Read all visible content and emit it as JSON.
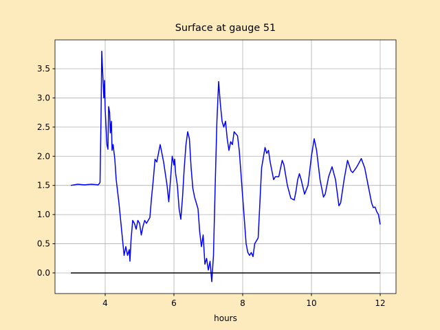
{
  "chart_data": {
    "type": "line",
    "title": "Surface at gauge 51",
    "x_label": "hours",
    "xlim": [
      2.54,
      12.46
    ],
    "ylim": [
      -0.354,
      3.995
    ],
    "xticks": [
      4,
      6,
      8,
      10,
      12
    ],
    "yticks": [
      {
        "value": 0,
        "label": "0.0"
      },
      0.5,
      {
        "value": 1,
        "label": "1.0"
      },
      1.5,
      {
        "value": 2,
        "label": "2.0"
      },
      2.5,
      {
        "value": 3,
        "label": "3.0"
      },
      3.5
    ],
    "grid": true,
    "series": [
      {
        "color": "#0000ff",
        "x": [
          3.0,
          3.2,
          3.4,
          3.6,
          3.8,
          3.85,
          3.88,
          3.9,
          3.93,
          3.96,
          3.98,
          4.0,
          4.05,
          4.08,
          4.1,
          4.13,
          4.15,
          4.18,
          4.2,
          4.23,
          4.28,
          4.32,
          4.4,
          4.5,
          4.55,
          4.6,
          4.65,
          4.7,
          4.72,
          4.75,
          4.8,
          4.85,
          4.9,
          4.95,
          5.0,
          5.05,
          5.1,
          5.15,
          5.2,
          5.3,
          5.35,
          5.4,
          5.45,
          5.5,
          5.6,
          5.7,
          5.8,
          5.85,
          5.9,
          5.95,
          6.0,
          6.02,
          6.05,
          6.1,
          6.15,
          6.2,
          6.25,
          6.3,
          6.35,
          6.4,
          6.45,
          6.5,
          6.55,
          6.6,
          6.7,
          6.75,
          6.8,
          6.85,
          6.9,
          6.95,
          7.0,
          7.05,
          7.1,
          7.15,
          7.2,
          7.25,
          7.3,
          7.35,
          7.4,
          7.45,
          7.5,
          7.55,
          7.6,
          7.65,
          7.7,
          7.75,
          7.85,
          7.9,
          7.95,
          8.0,
          8.05,
          8.1,
          8.15,
          8.2,
          8.25,
          8.3,
          8.35,
          8.45,
          8.5,
          8.55,
          8.65,
          8.7,
          8.75,
          8.8,
          8.85,
          8.9,
          8.95,
          9.05,
          9.15,
          9.2,
          9.3,
          9.4,
          9.5,
          9.55,
          9.6,
          9.65,
          9.7,
          9.8,
          9.9,
          10.0,
          10.08,
          10.15,
          10.25,
          10.35,
          10.4,
          10.5,
          10.6,
          10.7,
          10.8,
          10.85,
          10.95,
          11.05,
          11.15,
          11.2,
          11.3,
          11.35,
          11.45,
          11.55,
          11.65,
          11.75,
          11.8,
          11.85,
          11.9,
          11.95,
          12.0
        ],
        "values": [
          1.5,
          1.52,
          1.51,
          1.52,
          1.51,
          1.55,
          2.7,
          3.8,
          3.4,
          3.0,
          3.3,
          2.8,
          2.2,
          2.12,
          2.85,
          2.75,
          2.4,
          2.6,
          2.1,
          2.2,
          1.95,
          1.6,
          1.2,
          0.6,
          0.3,
          0.45,
          0.3,
          0.4,
          0.2,
          0.55,
          0.9,
          0.85,
          0.75,
          0.9,
          0.85,
          0.65,
          0.8,
          0.9,
          0.85,
          0.95,
          1.3,
          1.6,
          1.95,
          1.9,
          2.2,
          1.9,
          1.5,
          1.22,
          1.6,
          2.0,
          1.85,
          1.95,
          1.7,
          1.5,
          1.1,
          0.92,
          1.3,
          1.8,
          2.2,
          2.42,
          2.3,
          1.8,
          1.45,
          1.3,
          1.1,
          0.7,
          0.45,
          0.65,
          0.15,
          0.25,
          0.05,
          0.2,
          -0.15,
          0.3,
          1.5,
          2.6,
          3.28,
          2.9,
          2.6,
          2.5,
          2.6,
          2.3,
          2.1,
          2.25,
          2.2,
          2.42,
          2.35,
          2.1,
          1.7,
          1.3,
          0.9,
          0.5,
          0.35,
          0.3,
          0.35,
          0.28,
          0.5,
          0.6,
          1.2,
          1.8,
          2.15,
          2.05,
          2.1,
          1.9,
          1.75,
          1.6,
          1.65,
          1.65,
          1.93,
          1.85,
          1.5,
          1.28,
          1.25,
          1.4,
          1.6,
          1.7,
          1.6,
          1.35,
          1.5,
          2.0,
          2.3,
          2.1,
          1.6,
          1.3,
          1.35,
          1.65,
          1.82,
          1.6,
          1.15,
          1.2,
          1.6,
          1.93,
          1.75,
          1.72,
          1.8,
          1.85,
          1.96,
          1.8,
          1.5,
          1.2,
          1.12,
          1.13,
          1.05,
          1.0,
          0.83
        ]
      },
      {
        "color": "#000000",
        "x": [
          3,
          12
        ],
        "values": [
          0,
          0
        ]
      }
    ]
  }
}
